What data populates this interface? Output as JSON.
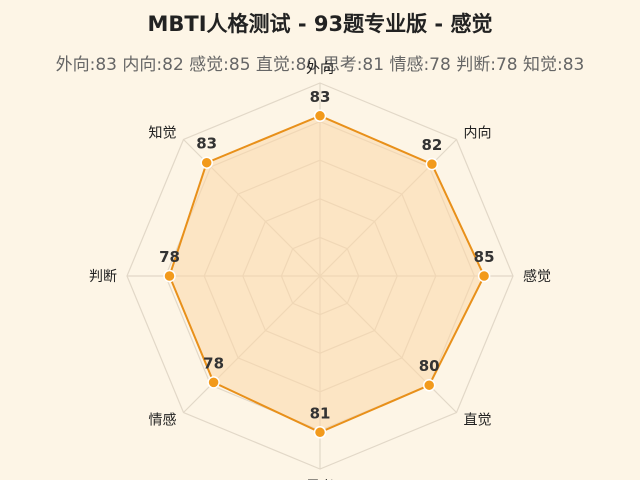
{
  "title": "MBTI人格测试 - 93题专业版 - 感觉",
  "subtitle": "外向:83 内向:82 感觉:85 直觉:80 思考:81 情感:78 判断:78 知觉:83",
  "colors": {
    "background": "#fdf5e6",
    "series_line": "#e8901a",
    "series_fill": "#fbd7a8",
    "point": "#f29a1c",
    "grid": "#e2d8c8"
  },
  "chart_data": {
    "type": "radar",
    "title": "MBTI人格测试 - 93题专业版 - 感觉",
    "subtitle": "外向:83 内向:82 感觉:85 直觉:80 思考:81 情感:78 判断:78 知觉:83",
    "categories": [
      "外向",
      "内向",
      "感觉",
      "直觉",
      "思考",
      "情感",
      "判断",
      "知觉"
    ],
    "values": [
      83,
      82,
      85,
      80,
      81,
      78,
      78,
      83
    ],
    "rlim": [
      0,
      100
    ],
    "grid": true,
    "legend": "none"
  }
}
